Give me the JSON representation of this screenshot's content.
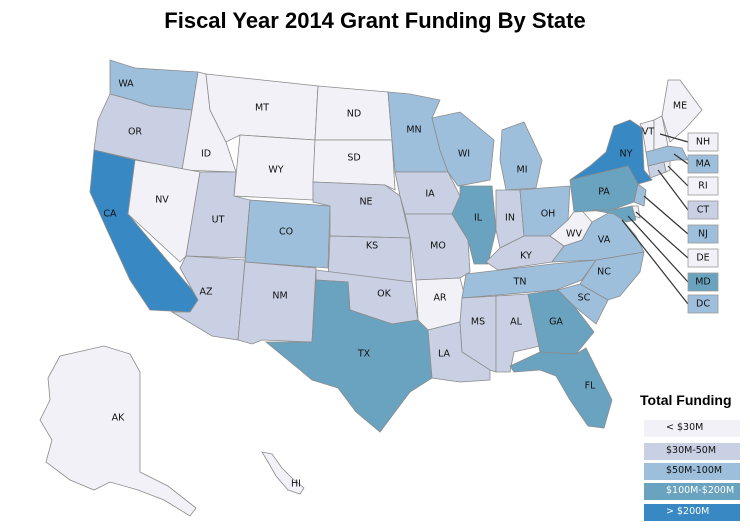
{
  "title": "Fiscal Year 2014 Grant Funding By State",
  "colors": {
    "bin0": "#f1f1f7",
    "bin1": "#c9d0e3",
    "bin2": "#9dbfdc",
    "bin3": "#6aa3bf",
    "bin4": "#3888c4"
  },
  "legend": {
    "title": "Total Funding",
    "items": [
      {
        "label": "< $30M",
        "bin": 0
      },
      {
        "label": "$30M-50M",
        "bin": 1
      },
      {
        "label": "$50M-100M",
        "bin": 2
      },
      {
        "label": "$100M-$200M",
        "bin": 3
      },
      {
        "label": "> $200M",
        "bin": 4
      }
    ]
  },
  "states": {
    "WA": {
      "label": "WA",
      "bin": 2
    },
    "OR": {
      "label": "OR",
      "bin": 1
    },
    "CA": {
      "label": "CA",
      "bin": 4
    },
    "ID": {
      "label": "ID",
      "bin": 0
    },
    "NV": {
      "label": "NV",
      "bin": 0
    },
    "MT": {
      "label": "MT",
      "bin": 0
    },
    "WY": {
      "label": "WY",
      "bin": 0
    },
    "UT": {
      "label": "UT",
      "bin": 1
    },
    "AZ": {
      "label": "AZ",
      "bin": 1
    },
    "CO": {
      "label": "CO",
      "bin": 2
    },
    "NM": {
      "label": "NM",
      "bin": 1
    },
    "ND": {
      "label": "ND",
      "bin": 0
    },
    "SD": {
      "label": "SD",
      "bin": 0
    },
    "NE": {
      "label": "NE",
      "bin": 1
    },
    "KS": {
      "label": "KS",
      "bin": 1
    },
    "OK": {
      "label": "OK",
      "bin": 1
    },
    "TX": {
      "label": "TX",
      "bin": 3
    },
    "MN": {
      "label": "MN",
      "bin": 2
    },
    "IA": {
      "label": "IA",
      "bin": 1
    },
    "MO": {
      "label": "MO",
      "bin": 1
    },
    "AR": {
      "label": "AR",
      "bin": 0
    },
    "LA": {
      "label": "LA",
      "bin": 1
    },
    "WI": {
      "label": "WI",
      "bin": 2
    },
    "IL": {
      "label": "IL",
      "bin": 3
    },
    "MI": {
      "label": "MI",
      "bin": 2
    },
    "IN": {
      "label": "IN",
      "bin": 1
    },
    "OH": {
      "label": "OH",
      "bin": 2
    },
    "KY": {
      "label": "KY",
      "bin": 1
    },
    "TN": {
      "label": "TN",
      "bin": 2
    },
    "MS": {
      "label": "MS",
      "bin": 1
    },
    "AL": {
      "label": "AL",
      "bin": 1
    },
    "GA": {
      "label": "GA",
      "bin": 3
    },
    "FL": {
      "label": "FL",
      "bin": 3
    },
    "SC": {
      "label": "SC",
      "bin": 2
    },
    "NC": {
      "label": "NC",
      "bin": 2
    },
    "VA": {
      "label": "VA",
      "bin": 2
    },
    "WV": {
      "label": "WV",
      "bin": 0
    },
    "PA": {
      "label": "PA",
      "bin": 3
    },
    "NY": {
      "label": "NY",
      "bin": 4
    },
    "VT": {
      "label": "VT",
      "bin": 0
    },
    "ME": {
      "label": "ME",
      "bin": 0
    },
    "AK": {
      "label": "AK",
      "bin": 0
    },
    "HI": {
      "label": "HI",
      "bin": 0
    },
    "NH": {
      "label": "NH",
      "bin": 0
    },
    "MA": {
      "label": "MA",
      "bin": 2
    },
    "RI": {
      "label": "RI",
      "bin": 0
    },
    "CT": {
      "label": "CT",
      "bin": 1
    },
    "NJ": {
      "label": "NJ",
      "bin": 2
    },
    "DE": {
      "label": "DE",
      "bin": 0
    },
    "MD": {
      "label": "MD",
      "bin": 3
    },
    "DC": {
      "label": "DC",
      "bin": 2
    }
  }
}
